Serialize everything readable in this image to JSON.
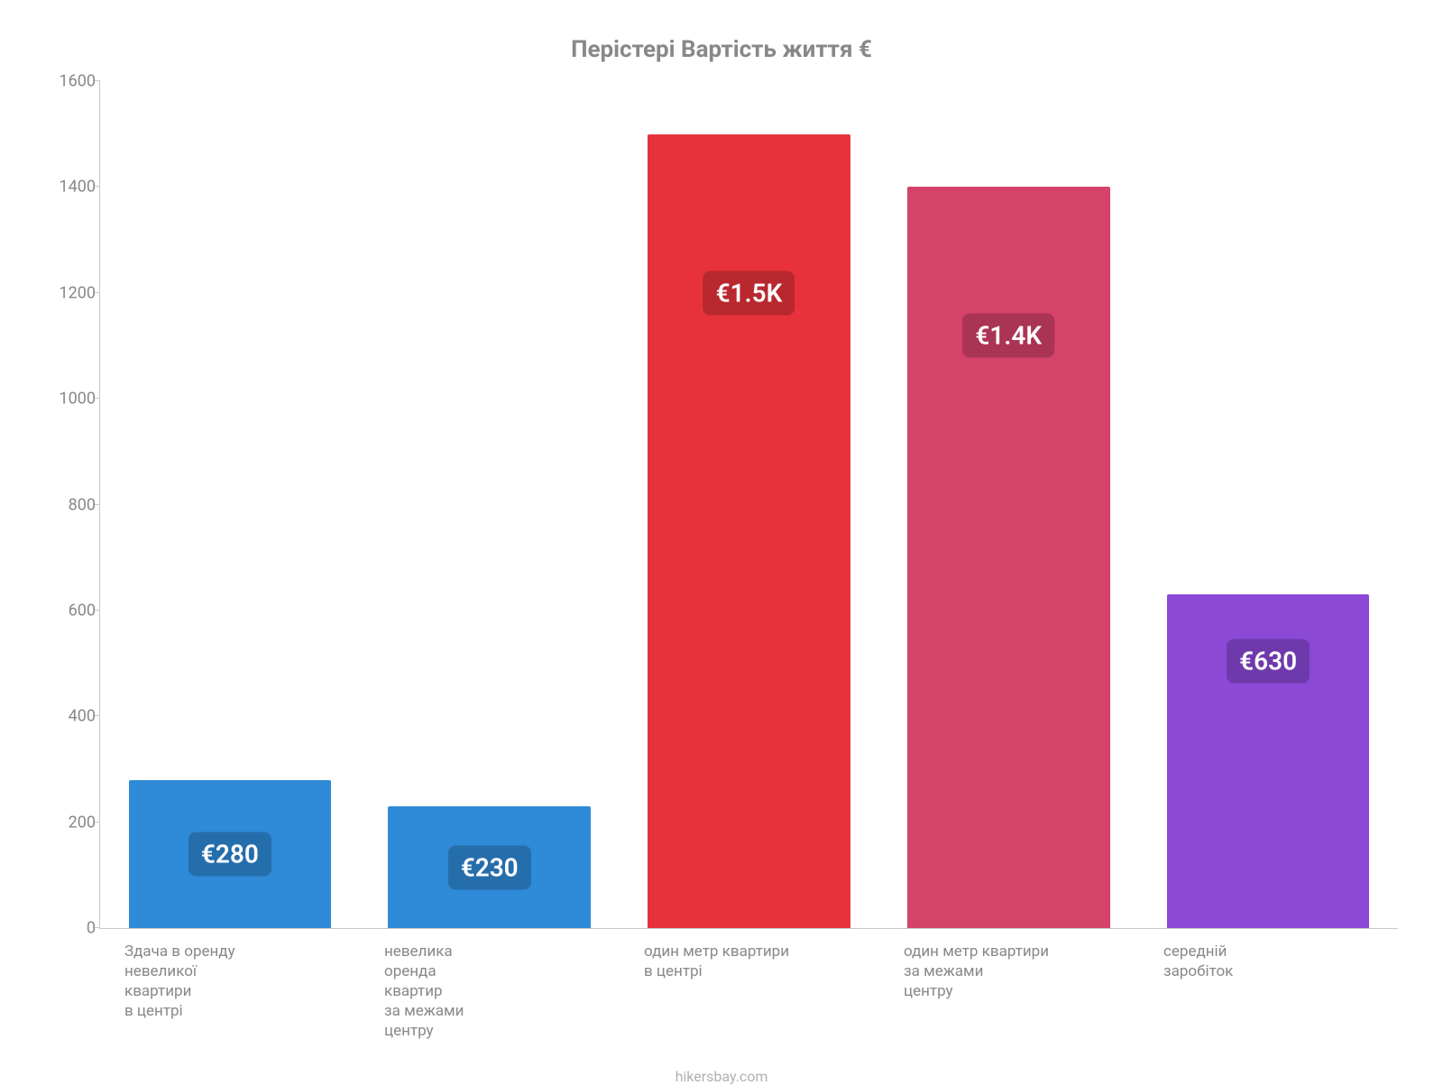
{
  "chart": {
    "type": "bar",
    "title": "Перістері Вартість життя €",
    "title_fontsize": 26,
    "title_color": "#888888",
    "background_color": "#ffffff",
    "axis_color": "#c8c8c8",
    "tick_label_color": "#888888",
    "tick_fontsize": 18,
    "xlabel_fontsize": 17,
    "ylim": [
      0,
      1600
    ],
    "ytick_step": 200,
    "yticks": [
      0,
      200,
      400,
      600,
      800,
      1000,
      1200,
      1400,
      1600
    ],
    "bar_width_ratio": 0.78,
    "value_badge_fontsize": 28,
    "value_badge_radius": 8,
    "categories": [
      "Здача в оренду\nневеликої\nквартири\nв центрі",
      "невелика\nоренда\nквартир\nза межами\nцентру",
      "один метр квартири\nв центрі",
      "один метр квартири\nза межами\nцентру",
      "середній\nзаробіток"
    ],
    "values": [
      280,
      230,
      1500,
      1400,
      630
    ],
    "value_labels": [
      "€280",
      "€230",
      "€1.5K",
      "€1.4K",
      "€630"
    ],
    "bar_colors": [
      "#2f8ad8",
      "#2f8ad8",
      "#e7323b",
      "#d5426a",
      "#8b49d6"
    ],
    "badge_colors": [
      "#256eac",
      "#256eac",
      "#b9282f",
      "#aa3454",
      "#6e3aab"
    ],
    "attribution": "hikersbay.com",
    "attribution_fontsize": 16,
    "attribution_color": "#b0b0b0"
  }
}
